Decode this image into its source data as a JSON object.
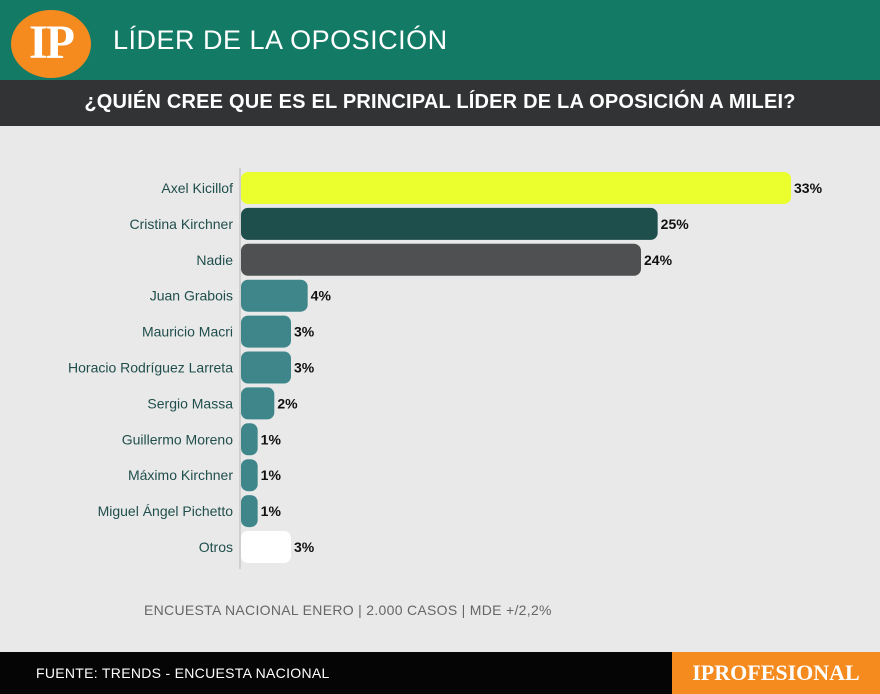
{
  "header": {
    "logo_text": "IP",
    "title": "LÍDER DE LA OPOSICIÓN",
    "question": "¿QUIÉN CREE QUE ES EL PRINCIPAL LÍDER DE LA OPOSICIÓN A MILEI?"
  },
  "chart_data": {
    "type": "bar",
    "orientation": "horizontal",
    "title": "¿QUIÉN CREE QUE ES EL PRINCIPAL LÍDER DE LA OPOSICIÓN A MILEI?",
    "xlabel": "",
    "ylabel": "",
    "xlim": [
      0,
      33
    ],
    "grid": false,
    "categories": [
      "Axel Kicillof",
      "Cristina Kirchner",
      "Nadie",
      "Juan Grabois",
      "Mauricio Macri",
      "Horacio Rodríguez Larreta",
      "Sergio Massa",
      "Guillermo Moreno",
      "Máximo Kirchner",
      "Miguel Ángel Pichetto",
      "Otros"
    ],
    "values": [
      33,
      25,
      24,
      4,
      3,
      3,
      2,
      1,
      1,
      1,
      3
    ],
    "value_labels": [
      "33%",
      "25%",
      "24%",
      "4%",
      "3%",
      "3%",
      "2%",
      "1%",
      "1%",
      "1%",
      "3%"
    ],
    "colors": [
      "#eaff2d",
      "#1e4f4d",
      "#4e5052",
      "#3f868a",
      "#3f868a",
      "#3f868a",
      "#3f868a",
      "#3f868a",
      "#3f868a",
      "#3f868a",
      "#ffffff"
    ]
  },
  "note": "ENCUESTA NACIONAL ENERO | 2.000 CASOS | MDE +/2,2%",
  "footer": {
    "source": "FUENTE: TRENDS - ENCUESTA NACIONAL",
    "brand": "IPROFESIONAL"
  },
  "colors": {
    "header_bg": "#137a65",
    "question_bg": "#313335",
    "accent": "#f58a1f",
    "background": "#e9e9e9"
  }
}
